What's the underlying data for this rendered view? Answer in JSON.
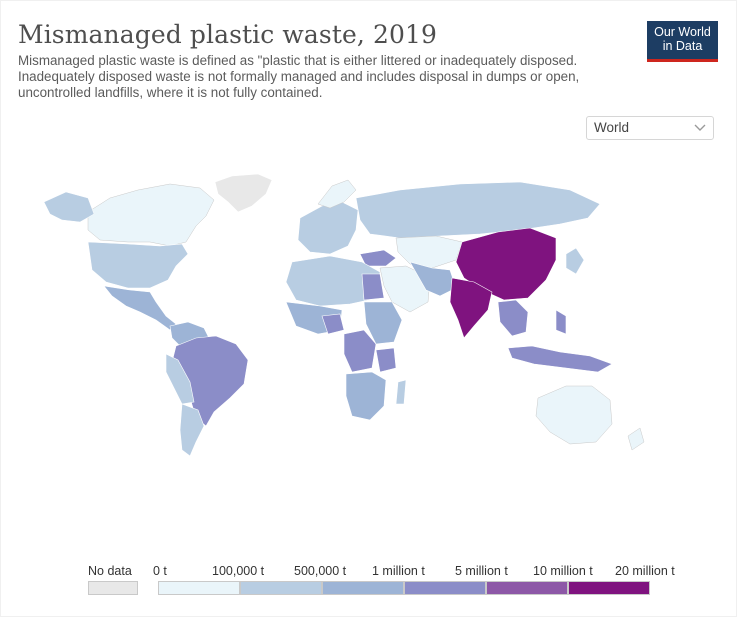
{
  "title": "Mismanaged plastic waste, 2019",
  "subtitle": "Mismanaged plastic waste is defined as \"plastic that is either littered or inadequately disposed. Inadequately disposed waste is not formally managed and includes disposal in dumps or open, uncontrolled landfills, where it is not fully contained.",
  "logo": {
    "line1": "Our World",
    "line2": "in Data"
  },
  "region_select": {
    "value": "World"
  },
  "legend": {
    "no_data_label": "No data",
    "bins": [
      "0 t",
      "100,000 t",
      "500,000 t",
      "1 million t",
      "5 million t",
      "10 million t",
      "20 million t"
    ],
    "colors": {
      "no_data": "#e8e8e8",
      "c0": "#eaf5fa",
      "c1": "#b8cde2",
      "c2": "#9db4d6",
      "c3": "#8b8dc8",
      "c4": "#8d58a7",
      "c5": "#7f137f"
    }
  },
  "map_data": {
    "China": "10 million t - 20 million t",
    "India": "10 million t - 20 million t",
    "Brazil": "1 million t - 5 million t",
    "Nigeria": "1 million t - 5 million t",
    "DR Congo": "1 million t - 5 million t",
    "Tanzania": "1 million t - 5 million t",
    "Egypt": "1 million t - 5 million t",
    "Turkey": "1 million t - 5 million t",
    "Thailand": "1 million t - 5 million t",
    "Vietnam": "1 million t - 5 million t",
    "Philippines": "1 million t - 5 million t",
    "Indonesia": "1 million t - 5 million t",
    "Bangladesh": "1 million t - 5 million t",
    "Pakistan": "1 million t - 5 million t",
    "Russia": "100,000 t - 500,000 t",
    "United States": "100,000 t - 500,000 t",
    "Canada": "0 t - 100,000 t",
    "Australia": "0 t - 100,000 t",
    "Greenland": "No data"
  }
}
